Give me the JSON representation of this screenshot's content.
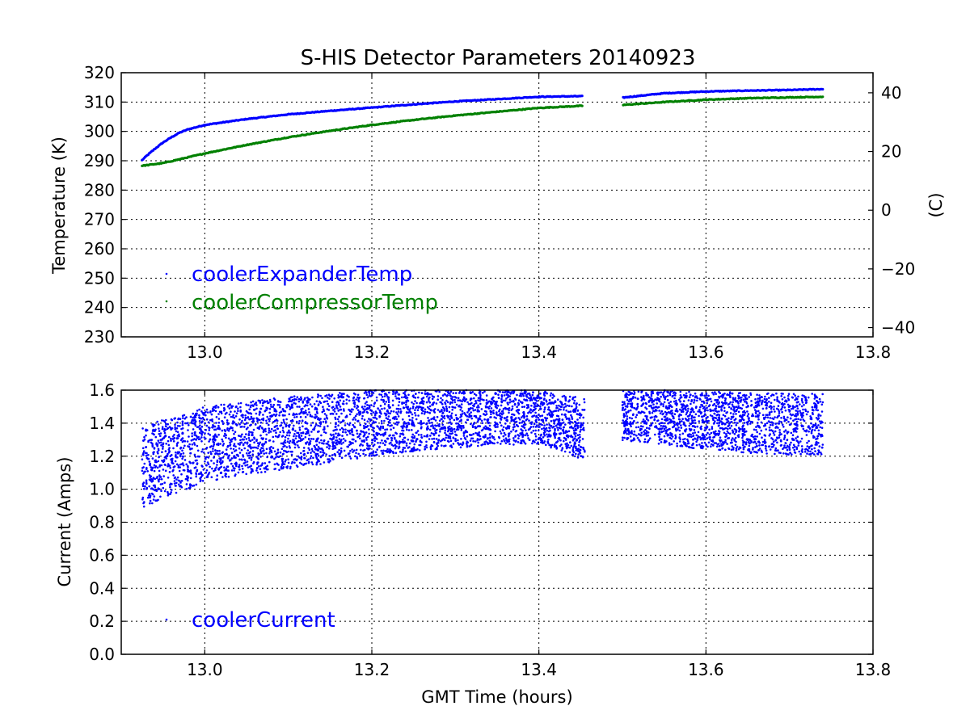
{
  "chart_data": [
    {
      "type": "scatter",
      "title": "S-HIS Detector Parameters 20140923",
      "xlabel": "",
      "ylabel": "Temperature (K)",
      "ylabel_right": "(C)",
      "xlim": [
        12.9,
        13.8
      ],
      "ylim": [
        230,
        320
      ],
      "ylim_right": [
        -43.15,
        46.85
      ],
      "xticks": [
        "13.0",
        "13.2",
        "13.4",
        "13.6",
        "13.8"
      ],
      "yticks": [
        "230",
        "240",
        "250",
        "260",
        "270",
        "280",
        "290",
        "300",
        "310",
        "320"
      ],
      "yticks_right": [
        "−40",
        "−20",
        "0",
        "20",
        "40"
      ],
      "grid": true,
      "legend_position": "lower-left",
      "series": [
        {
          "name": "coolerExpanderTemp",
          "color": "#0000ff",
          "x": [
            12.925,
            12.93,
            12.94,
            12.95,
            12.96,
            12.97,
            12.98,
            13.0,
            13.05,
            13.1,
            13.15,
            13.2,
            13.25,
            13.3,
            13.35,
            13.4,
            13.45,
            13.5,
            13.55,
            13.6,
            13.65,
            13.7,
            13.74
          ],
          "y": [
            290.2,
            291.6,
            294.0,
            296.2,
            298.0,
            299.6,
            300.7,
            302.2,
            304.2,
            305.8,
            307.0,
            308.1,
            309.2,
            310.2,
            311.0,
            311.8,
            312.0,
            311.5,
            313.0,
            313.6,
            313.9,
            314.1,
            314.4
          ]
        },
        {
          "name": "coolerCompressorTemp",
          "color": "#008000",
          "x": [
            12.925,
            12.95,
            13.0,
            13.05,
            13.1,
            13.15,
            13.2,
            13.25,
            13.3,
            13.35,
            13.4,
            13.45,
            13.5,
            13.55,
            13.6,
            13.65,
            13.7,
            13.74
          ],
          "y": [
            288.3,
            289.2,
            292.5,
            295.4,
            298.0,
            300.2,
            302.2,
            303.9,
            305.4,
            306.7,
            308.0,
            308.7,
            309.0,
            310.0,
            310.8,
            311.3,
            311.6,
            311.8
          ]
        }
      ]
    },
    {
      "type": "scatter",
      "title": "",
      "xlabel": "GMT Time (hours)",
      "ylabel": "Current (Amps)",
      "xlim": [
        12.9,
        13.8
      ],
      "ylim": [
        0.0,
        1.6
      ],
      "xticks": [
        "13.0",
        "13.2",
        "13.4",
        "13.6",
        "13.8"
      ],
      "yticks": [
        "0.0",
        "0.2",
        "0.4",
        "0.6",
        "0.8",
        "1.0",
        "1.2",
        "1.4",
        "1.6"
      ],
      "grid": true,
      "legend_position": "lower-left",
      "series": [
        {
          "name": "coolerCurrent",
          "color": "#0000ff",
          "segments": [
            {
              "x_range": [
                12.925,
                13.455
              ],
              "lower_x": [
                12.925,
                12.95,
                13.0,
                13.05,
                13.1,
                13.15,
                13.2,
                13.25,
                13.3,
                13.35,
                13.4,
                13.43,
                13.455
              ],
              "lower_y": [
                0.88,
                0.95,
                1.04,
                1.09,
                1.12,
                1.16,
                1.2,
                1.23,
                1.25,
                1.27,
                1.27,
                1.23,
                1.17
              ],
              "upper_x": [
                12.925,
                12.95,
                13.0,
                13.05,
                13.1,
                13.15,
                13.2,
                13.25,
                13.3,
                13.35,
                13.4,
                13.43,
                13.455
              ],
              "upper_y": [
                1.38,
                1.42,
                1.5,
                1.53,
                1.56,
                1.58,
                1.6,
                1.6,
                1.6,
                1.6,
                1.6,
                1.57,
                1.55
              ]
            },
            {
              "x_range": [
                13.5,
                13.74
              ],
              "lower_x": [
                13.5,
                13.55,
                13.6,
                13.65,
                13.7,
                13.74
              ],
              "lower_y": [
                1.29,
                1.27,
                1.24,
                1.22,
                1.21,
                1.21
              ],
              "upper_x": [
                13.5,
                13.55,
                13.6,
                13.65,
                13.7,
                13.74
              ],
              "upper_y": [
                1.6,
                1.6,
                1.59,
                1.59,
                1.58,
                1.58
              ]
            }
          ]
        }
      ]
    }
  ]
}
